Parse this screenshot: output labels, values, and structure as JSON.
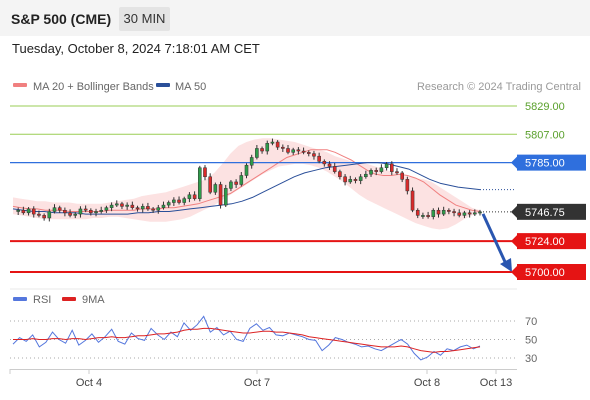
{
  "header": {
    "title": "S&P 500 (CME)",
    "timeframe_label": "30 MIN",
    "timestamp": "Tuesday, October 8, 2024 7:18:01 AM CET"
  },
  "legend": {
    "items": [
      {
        "name": "MA 20 + Bollinger Bands",
        "color": "#f08080"
      },
      {
        "name": "MA 50",
        "color": "#2a4f99"
      }
    ],
    "credit": "Research © 2024 Trading Central"
  },
  "rsi_legend": {
    "items": [
      {
        "name": "RSI",
        "color": "#5577dd"
      },
      {
        "name": "9MA",
        "color": "#dd2222"
      }
    ]
  },
  "chart_data": [
    {
      "type": "candlestick",
      "y_ticks": [
        "5829.00",
        "5807.00",
        "5785.00",
        "5746.75",
        "5724.00",
        "5700.00"
      ],
      "x_tick_labels": [
        "Oct 4",
        "Oct 7",
        "Oct 8",
        "Oct 13"
      ],
      "ylim": [
        5700,
        5829
      ],
      "current_price": 5746.75,
      "levels": [
        {
          "label": "5829.00",
          "value": 5829,
          "kind": "target",
          "color": "#9acd55"
        },
        {
          "label": "5807.00",
          "value": 5807,
          "kind": "target",
          "color": "#9acd55"
        },
        {
          "label": "5785.00",
          "value": 5785,
          "kind": "pivot",
          "color": "#2f6fdd"
        },
        {
          "label": "5724.00",
          "value": 5724,
          "kind": "support",
          "color": "#e51414"
        },
        {
          "label": "5700.00",
          "value": 5700,
          "kind": "support",
          "color": "#e51414"
        }
      ],
      "price_path": [
        5747,
        5748,
        5746,
        5749,
        5745,
        5744,
        5742,
        5747,
        5750,
        5748,
        5746,
        5744,
        5745,
        5749,
        5748,
        5746,
        5747,
        5748,
        5750,
        5752,
        5753,
        5751,
        5752,
        5750,
        5749,
        5751,
        5749,
        5748,
        5750,
        5752,
        5754,
        5756,
        5754,
        5757,
        5760,
        5757,
        5781,
        5774,
        5762,
        5768,
        5752,
        5765,
        5770,
        5768,
        5775,
        5783,
        5789,
        5796,
        5794,
        5800,
        5801,
        5797,
        5796,
        5793,
        5795,
        5794,
        5793,
        5792,
        5790,
        5786,
        5784,
        5782,
        5778,
        5774,
        5770,
        5772,
        5771,
        5774,
        5776,
        5779,
        5778,
        5781,
        5784,
        5778,
        5777,
        5772,
        5763,
        5748,
        5744,
        5744,
        5743,
        5748,
        5745,
        5748,
        5747,
        5746,
        5744,
        5746,
        5745,
        5746,
        5746.75
      ],
      "forecast": {
        "direction": "down",
        "target": 5700
      },
      "series": [
        {
          "name": "MA 20 + Bollinger Bands",
          "color": "#f08080",
          "ma": [
            5751,
            5750,
            5749,
            5749,
            5748,
            5748,
            5748,
            5747,
            5747,
            5747,
            5747,
            5747,
            5748,
            5748,
            5748,
            5748,
            5749,
            5749,
            5749,
            5750,
            5750,
            5751,
            5752,
            5753,
            5755,
            5757,
            5759,
            5761,
            5765,
            5769,
            5773,
            5777,
            5781,
            5785,
            5789,
            5791,
            5793,
            5795,
            5795,
            5795,
            5793,
            5790,
            5787,
            5783,
            5779,
            5776,
            5775,
            5775,
            5776,
            5775,
            5773,
            5770,
            5765,
            5760,
            5756,
            5752,
            5750,
            5748,
            5747
          ],
          "upper": [
            5758,
            5757,
            5756,
            5755,
            5755,
            5754,
            5754,
            5754,
            5753,
            5753,
            5753,
            5753,
            5754,
            5755,
            5756,
            5757,
            5759,
            5760,
            5761,
            5762,
            5764,
            5766,
            5768,
            5770,
            5772,
            5777,
            5784,
            5792,
            5798,
            5801,
            5803,
            5804,
            5804,
            5803,
            5802,
            5801,
            5799,
            5797,
            5795,
            5793,
            5790,
            5788,
            5786,
            5785,
            5784,
            5782,
            5780,
            5778,
            5776,
            5774,
            5773,
            5772,
            5770,
            5766,
            5762,
            5758,
            5754,
            5750,
            5748
          ],
          "lower": [
            5745,
            5744,
            5743,
            5742,
            5741,
            5741,
            5741,
            5741,
            5741,
            5741,
            5742,
            5742,
            5743,
            5743,
            5742,
            5741,
            5740,
            5739,
            5739,
            5739,
            5740,
            5741,
            5743,
            5746,
            5749,
            5752,
            5756,
            5760,
            5764,
            5768,
            5772,
            5776,
            5779,
            5782,
            5783,
            5784,
            5784,
            5783,
            5781,
            5778,
            5774,
            5770,
            5765,
            5760,
            5756,
            5753,
            5750,
            5747,
            5744,
            5741,
            5738,
            5736,
            5734,
            5733,
            5734,
            5737,
            5741,
            5744,
            5746
          ]
        },
        {
          "name": "MA 50",
          "color": "#2a4f99",
          "values": [
            5749,
            5748,
            5747,
            5747,
            5746,
            5746,
            5746,
            5745,
            5745,
            5745,
            5745,
            5745,
            5746,
            5746,
            5747,
            5747,
            5748,
            5749,
            5750,
            5751,
            5752,
            5753,
            5755,
            5758,
            5762,
            5766,
            5770,
            5774,
            5777,
            5779,
            5781,
            5782,
            5783,
            5784,
            5785,
            5785,
            5784,
            5782,
            5780,
            5776,
            5772,
            5769
          ]
        }
      ]
    },
    {
      "type": "line",
      "title": "RSI",
      "y_ticks": [
        "70",
        "50",
        "30"
      ],
      "ylim": [
        20,
        80
      ],
      "series": [
        {
          "name": "RSI",
          "color": "#5577dd",
          "values": [
            45,
            52,
            48,
            55,
            42,
            47,
            58,
            50,
            46,
            60,
            44,
            49,
            56,
            47,
            53,
            61,
            48,
            45,
            57,
            51,
            49,
            62,
            55,
            50,
            58,
            53,
            68,
            60,
            66,
            75,
            58,
            63,
            55,
            59,
            50,
            48,
            62,
            67,
            60,
            63,
            55,
            54,
            57,
            55,
            53,
            50,
            49,
            38,
            44,
            52,
            50,
            47,
            45,
            42,
            43,
            40,
            38,
            42,
            46,
            50,
            45,
            35,
            28,
            31,
            37,
            33,
            40,
            38,
            42,
            44,
            40,
            43
          ]
        },
        {
          "name": "9MA",
          "color": "#dd2222",
          "values": [
            50,
            50,
            50,
            51,
            50,
            50,
            51,
            51,
            50,
            51,
            51,
            50,
            51,
            52,
            52,
            53,
            52,
            52,
            53,
            54,
            54,
            55,
            56,
            56,
            57,
            58,
            60,
            61,
            61,
            62,
            62,
            61,
            60,
            59,
            58,
            57,
            57,
            58,
            59,
            59,
            58,
            58,
            57,
            56,
            55,
            53,
            52,
            51,
            50,
            49,
            48,
            47,
            46,
            45,
            44,
            43,
            42,
            42,
            42,
            43,
            42,
            40,
            38,
            37,
            36,
            37,
            37,
            38,
            39,
            40,
            41,
            42
          ]
        }
      ]
    }
  ]
}
